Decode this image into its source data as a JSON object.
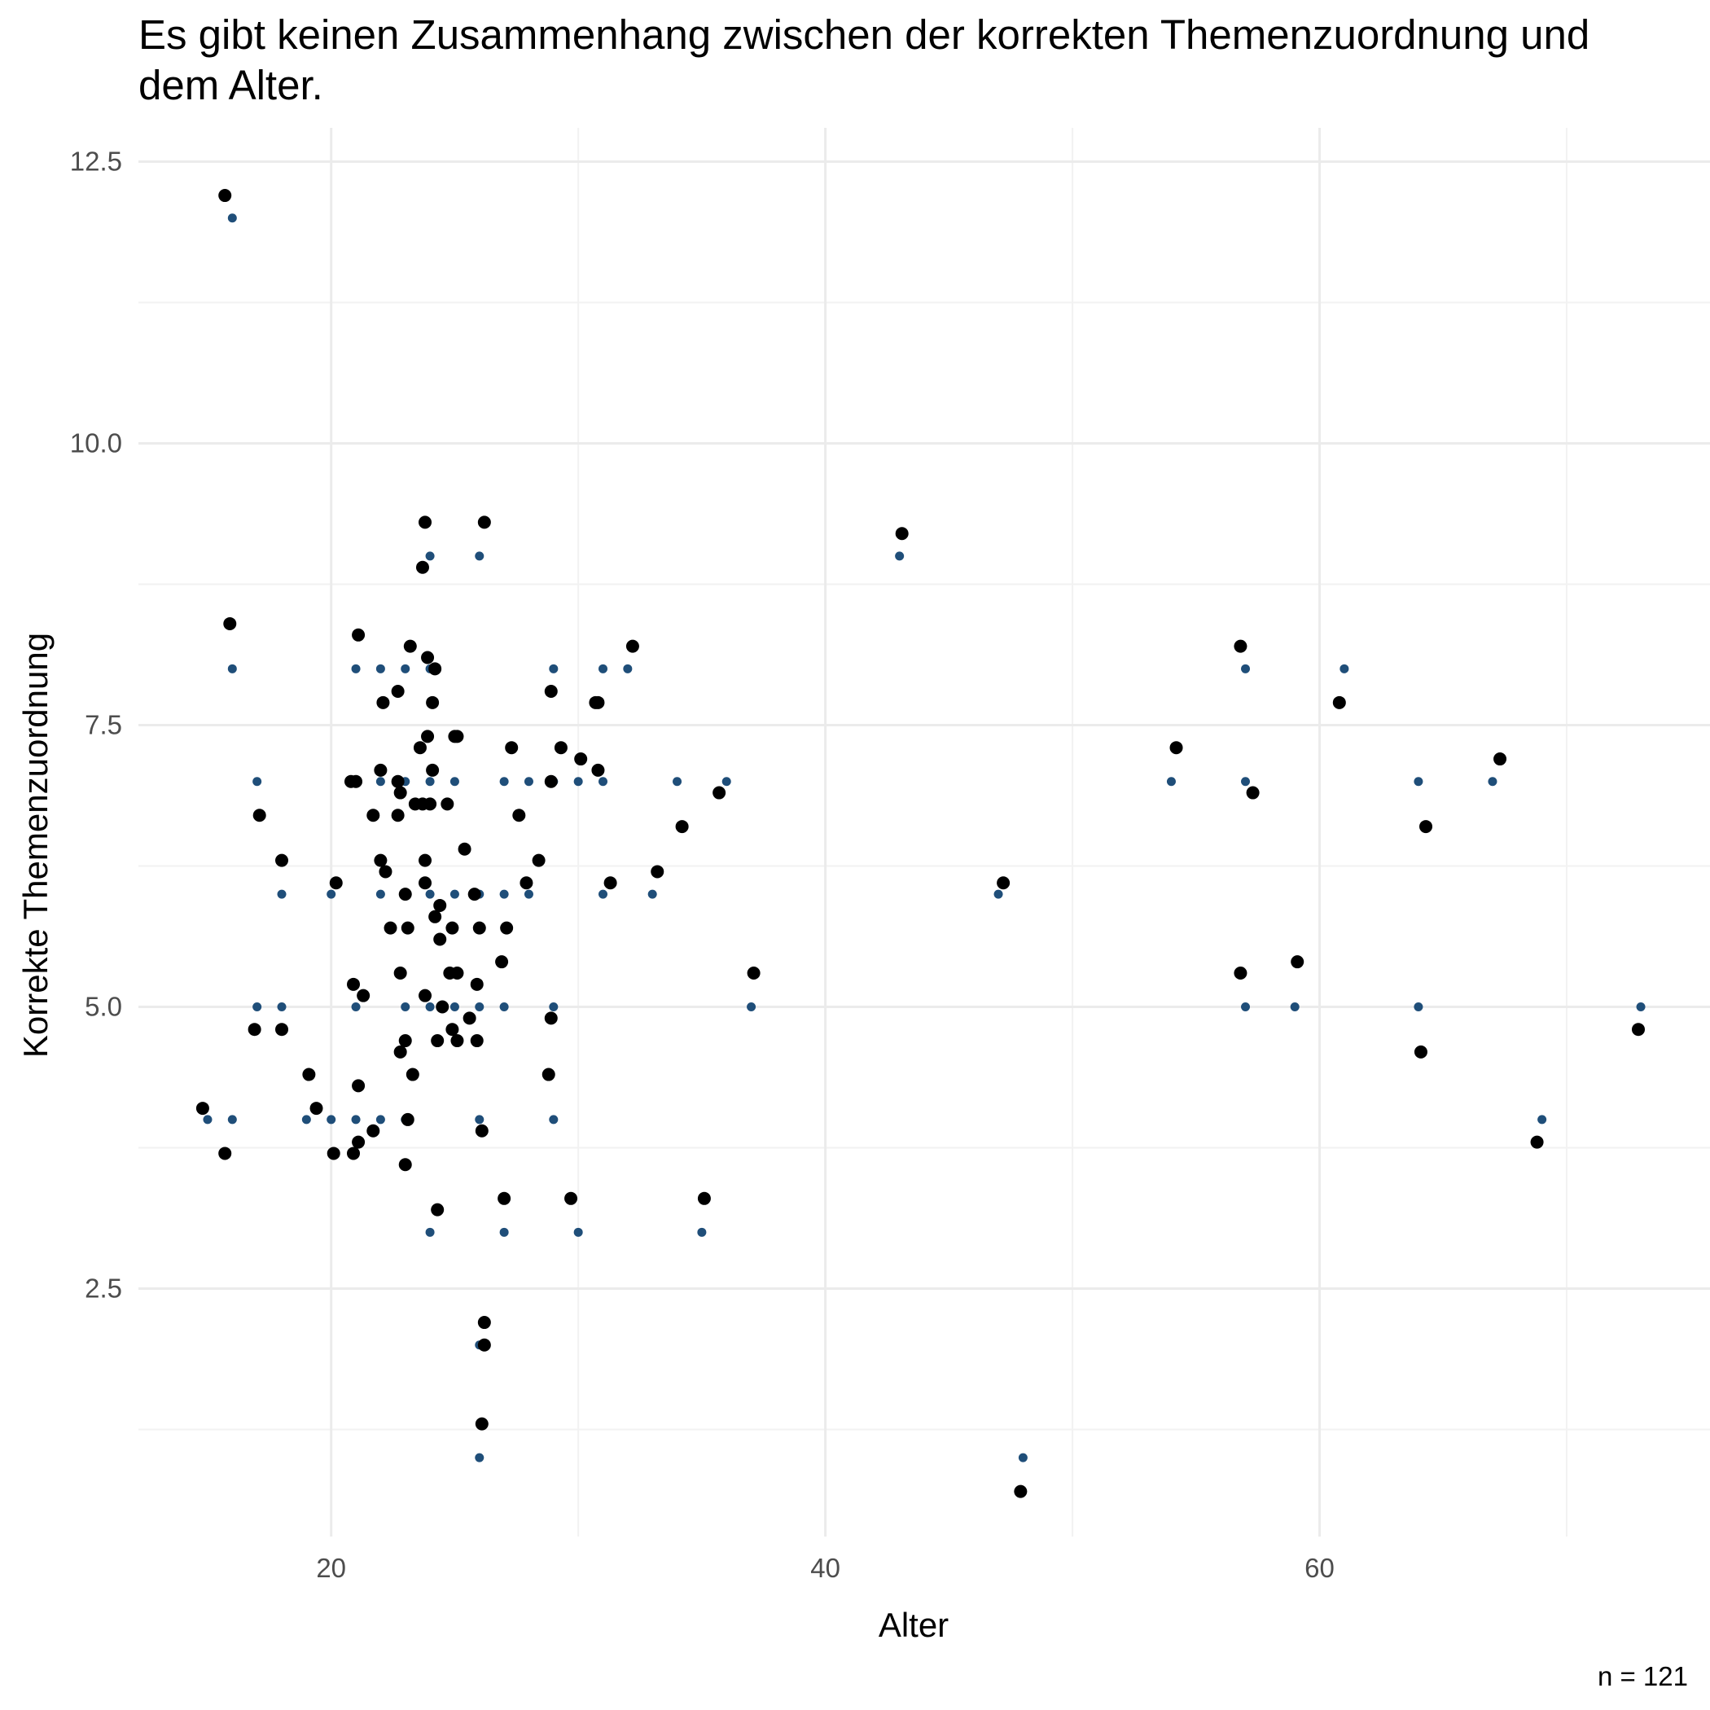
{
  "chart_data": {
    "type": "scatter",
    "title_lines": [
      "Es gibt keinen Zusammenhang zwischen der korrekten Themenzuordnung und",
      "dem Alter."
    ],
    "xlabel": "Alter",
    "ylabel": "Korrekte Themenzuordnung",
    "caption": "n = 121",
    "xlim": [
      12.2,
      75.8
    ],
    "ylim": [
      0.3,
      12.8
    ],
    "x_ticks": [
      20,
      40,
      60
    ],
    "x_tick_labels": [
      "20",
      "40",
      "60"
    ],
    "y_ticks": [
      2.5,
      5.0,
      7.5,
      10.0,
      12.5
    ],
    "y_tick_labels": [
      "2.5",
      "5.0",
      "7.5",
      "10.0",
      "12.5"
    ],
    "grid": true,
    "legend": "none",
    "series": [
      {
        "color": "#1f4e79",
        "marker": "small-point",
        "points": [
          [
            16,
            12
          ],
          [
            16,
            8
          ],
          [
            17,
            7
          ],
          [
            17,
            5
          ],
          [
            18,
            6
          ],
          [
            18,
            5
          ],
          [
            15,
            4
          ],
          [
            16,
            4
          ],
          [
            19,
            4
          ],
          [
            20,
            4
          ],
          [
            20,
            6
          ],
          [
            21,
            8
          ],
          [
            21,
            5
          ],
          [
            21,
            4
          ],
          [
            22,
            8
          ],
          [
            22,
            7
          ],
          [
            22,
            6
          ],
          [
            22,
            4
          ],
          [
            23,
            8
          ],
          [
            23,
            7
          ],
          [
            23,
            6
          ],
          [
            23,
            5
          ],
          [
            23,
            4
          ],
          [
            24,
            9
          ],
          [
            24,
            8
          ],
          [
            24,
            7
          ],
          [
            24,
            6
          ],
          [
            24,
            5
          ],
          [
            24,
            3
          ],
          [
            25,
            7
          ],
          [
            25,
            6
          ],
          [
            25,
            5
          ],
          [
            26,
            9
          ],
          [
            26,
            6
          ],
          [
            26,
            5
          ],
          [
            26,
            4
          ],
          [
            26,
            2
          ],
          [
            26,
            1
          ],
          [
            27,
            7
          ],
          [
            27,
            6
          ],
          [
            27,
            5
          ],
          [
            27,
            3
          ],
          [
            28,
            7
          ],
          [
            28,
            6
          ],
          [
            29,
            8
          ],
          [
            29,
            7
          ],
          [
            29,
            5
          ],
          [
            29,
            4
          ],
          [
            30,
            7
          ],
          [
            30,
            3
          ],
          [
            31,
            8
          ],
          [
            31,
            7
          ],
          [
            31,
            6
          ],
          [
            32,
            8
          ],
          [
            33,
            6
          ],
          [
            34,
            7
          ],
          [
            35,
            3
          ],
          [
            36,
            7
          ],
          [
            37,
            5
          ],
          [
            43,
            9
          ],
          [
            47,
            6
          ],
          [
            48,
            1
          ],
          [
            54,
            7
          ],
          [
            57,
            8
          ],
          [
            57,
            7
          ],
          [
            57,
            5
          ],
          [
            59,
            5
          ],
          [
            61,
            8
          ],
          [
            64,
            7
          ],
          [
            64,
            5
          ],
          [
            67,
            7
          ],
          [
            69,
            4
          ],
          [
            73,
            5
          ]
        ]
      },
      {
        "color": "#000000",
        "marker": "large-point",
        "points": [
          [
            15.7,
            12.2
          ],
          [
            15.9,
            8.4
          ],
          [
            15.7,
            3.7
          ],
          [
            14.8,
            4.1
          ],
          [
            17.1,
            6.7
          ],
          [
            16.9,
            4.8
          ],
          [
            18.0,
            6.3
          ],
          [
            18.0,
            4.8
          ],
          [
            19.1,
            4.4
          ],
          [
            19.4,
            4.1
          ],
          [
            20.1,
            3.7
          ],
          [
            20.2,
            6.1
          ],
          [
            20.8,
            7.0
          ],
          [
            21.0,
            7.0
          ],
          [
            20.9,
            5.2
          ],
          [
            20.9,
            3.7
          ],
          [
            21.1,
            3.8
          ],
          [
            21.1,
            4.3
          ],
          [
            21.1,
            8.3
          ],
          [
            21.3,
            5.1
          ],
          [
            21.7,
            3.9
          ],
          [
            21.7,
            6.7
          ],
          [
            22.0,
            7.1
          ],
          [
            22.0,
            6.3
          ],
          [
            22.1,
            7.7
          ],
          [
            22.2,
            6.2
          ],
          [
            22.4,
            5.7
          ],
          [
            22.7,
            7.8
          ],
          [
            22.7,
            6.7
          ],
          [
            22.7,
            7.0
          ],
          [
            22.8,
            6.9
          ],
          [
            22.8,
            5.3
          ],
          [
            22.8,
            4.6
          ],
          [
            23.0,
            4.7
          ],
          [
            23.0,
            3.6
          ],
          [
            23.0,
            6.0
          ],
          [
            23.1,
            4.0
          ],
          [
            23.2,
            8.2
          ],
          [
            23.1,
            5.7
          ],
          [
            23.3,
            4.4
          ],
          [
            23.4,
            6.8
          ],
          [
            23.6,
            7.3
          ],
          [
            23.7,
            6.8
          ],
          [
            23.7,
            8.9
          ],
          [
            23.8,
            9.3
          ],
          [
            23.8,
            6.1
          ],
          [
            23.8,
            6.3
          ],
          [
            23.8,
            5.1
          ],
          [
            23.9,
            7.4
          ],
          [
            23.9,
            8.1
          ],
          [
            24.0,
            6.8
          ],
          [
            24.1,
            7.1
          ],
          [
            24.1,
            7.7
          ],
          [
            24.2,
            8.0
          ],
          [
            24.2,
            5.8
          ],
          [
            24.3,
            3.2
          ],
          [
            24.3,
            4.7
          ],
          [
            24.4,
            5.6
          ],
          [
            24.4,
            5.9
          ],
          [
            24.5,
            5.0
          ],
          [
            24.7,
            6.8
          ],
          [
            24.8,
            5.3
          ],
          [
            24.9,
            4.8
          ],
          [
            24.9,
            5.7
          ],
          [
            25.0,
            7.4
          ],
          [
            25.1,
            7.4
          ],
          [
            25.1,
            5.3
          ],
          [
            25.1,
            4.7
          ],
          [
            25.4,
            6.4
          ],
          [
            25.6,
            4.9
          ],
          [
            25.8,
            6.0
          ],
          [
            25.9,
            4.7
          ],
          [
            25.9,
            5.2
          ],
          [
            26.0,
            5.7
          ],
          [
            26.1,
            1.3
          ],
          [
            26.1,
            3.9
          ],
          [
            26.2,
            2.2
          ],
          [
            26.2,
            2.0
          ],
          [
            26.2,
            9.3
          ],
          [
            26.9,
            5.4
          ],
          [
            27.0,
            3.3
          ],
          [
            27.1,
            5.7
          ],
          [
            27.3,
            7.3
          ],
          [
            27.6,
            6.7
          ],
          [
            27.9,
            6.1
          ],
          [
            28.4,
            6.3
          ],
          [
            28.8,
            4.4
          ],
          [
            28.9,
            7.0
          ],
          [
            28.9,
            7.8
          ],
          [
            28.9,
            4.9
          ],
          [
            29.3,
            7.3
          ],
          [
            29.7,
            3.3
          ],
          [
            30.1,
            7.2
          ],
          [
            30.7,
            7.7
          ],
          [
            30.8,
            7.7
          ],
          [
            30.8,
            7.1
          ],
          [
            31.3,
            6.1
          ],
          [
            32.2,
            8.2
          ],
          [
            33.2,
            6.2
          ],
          [
            34.2,
            6.6
          ],
          [
            35.1,
            3.3
          ],
          [
            35.7,
            6.9
          ],
          [
            37.1,
            5.3
          ],
          [
            43.1,
            9.2
          ],
          [
            47.2,
            6.1
          ],
          [
            47.9,
            0.7
          ],
          [
            54.2,
            7.3
          ],
          [
            56.8,
            8.2
          ],
          [
            56.8,
            5.3
          ],
          [
            57.3,
            6.9
          ],
          [
            59.1,
            5.4
          ],
          [
            60.8,
            7.7
          ],
          [
            64.1,
            4.6
          ],
          [
            64.3,
            6.6
          ],
          [
            67.3,
            7.2
          ],
          [
            68.8,
            3.8
          ],
          [
            72.9,
            4.8
          ]
        ]
      }
    ]
  }
}
